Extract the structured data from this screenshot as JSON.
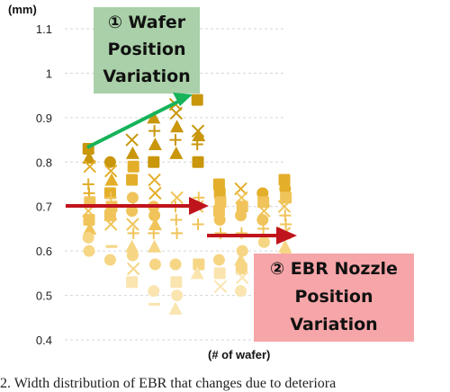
{
  "chart_data": {
    "type": "scatter",
    "ylabel": "(mm)",
    "xlabel": "(# of wafer)",
    "ylim": [
      0.4,
      1.1
    ],
    "yticks": [
      "1.1",
      "1",
      "0.9",
      "0.8",
      "0.7",
      "0.6",
      "0.5",
      "0.4"
    ],
    "grid": "horizontal dashed",
    "columns": [
      {
        "x": 1,
        "points": [
          {
            "y": 0.83,
            "m": "sq"
          },
          {
            "y": 0.81,
            "m": "tri"
          },
          {
            "y": 0.79,
            "m": "x"
          },
          {
            "y": 0.75,
            "m": "plus"
          },
          {
            "y": 0.73,
            "m": "plus"
          },
          {
            "y": 0.71,
            "m": "sq"
          },
          {
            "y": 0.69,
            "m": "x"
          },
          {
            "y": 0.67,
            "m": "sq"
          },
          {
            "y": 0.65,
            "m": "tri"
          },
          {
            "y": 0.63,
            "m": "circ"
          },
          {
            "y": 0.6,
            "m": "circ"
          }
        ]
      },
      {
        "x": 2,
        "points": [
          {
            "y": 0.8,
            "m": "circ"
          },
          {
            "y": 0.78,
            "m": "x"
          },
          {
            "y": 0.76,
            "m": "tri"
          },
          {
            "y": 0.73,
            "m": "sq"
          },
          {
            "y": 0.72,
            "m": "plus"
          },
          {
            "y": 0.7,
            "m": "sq"
          },
          {
            "y": 0.68,
            "m": "sq"
          },
          {
            "y": 0.66,
            "m": "x"
          },
          {
            "y": 0.61,
            "m": "bar"
          },
          {
            "y": 0.58,
            "m": "circ"
          }
        ]
      },
      {
        "x": 3,
        "points": [
          {
            "y": 0.85,
            "m": "x"
          },
          {
            "y": 0.82,
            "m": "tri"
          },
          {
            "y": 0.79,
            "m": "sq"
          },
          {
            "y": 0.76,
            "m": "sq"
          },
          {
            "y": 0.72,
            "m": "circ"
          },
          {
            "y": 0.7,
            "m": "plus"
          },
          {
            "y": 0.69,
            "m": "circ"
          },
          {
            "y": 0.66,
            "m": "x"
          },
          {
            "y": 0.64,
            "m": "plus"
          },
          {
            "y": 0.61,
            "m": "tri"
          },
          {
            "y": 0.59,
            "m": "circ"
          },
          {
            "y": 0.56,
            "m": "x"
          },
          {
            "y": 0.53,
            "m": "sq"
          }
        ]
      },
      {
        "x": 4,
        "points": [
          {
            "y": 0.9,
            "m": "tri"
          },
          {
            "y": 0.87,
            "m": "plus"
          },
          {
            "y": 0.84,
            "m": "tri"
          },
          {
            "y": 0.8,
            "m": "sq"
          },
          {
            "y": 0.76,
            "m": "x"
          },
          {
            "y": 0.73,
            "m": "x"
          },
          {
            "y": 0.7,
            "m": "circ"
          },
          {
            "y": 0.68,
            "m": "circ"
          },
          {
            "y": 0.66,
            "m": "tri"
          },
          {
            "y": 0.64,
            "m": "plus"
          },
          {
            "y": 0.61,
            "m": "tri"
          },
          {
            "y": 0.57,
            "m": "circ"
          },
          {
            "y": 0.51,
            "m": "circ"
          },
          {
            "y": 0.48,
            "m": "bar"
          }
        ]
      },
      {
        "x": 5,
        "points": [
          {
            "y": 0.93,
            "m": "x"
          },
          {
            "y": 0.91,
            "m": "x"
          },
          {
            "y": 0.88,
            "m": "tri"
          },
          {
            "y": 0.85,
            "m": "plus"
          },
          {
            "y": 0.82,
            "m": "tri"
          },
          {
            "y": 0.72,
            "m": "x"
          },
          {
            "y": 0.7,
            "m": "plus"
          },
          {
            "y": 0.67,
            "m": "plus"
          },
          {
            "y": 0.64,
            "m": "plus"
          },
          {
            "y": 0.57,
            "m": "circ"
          },
          {
            "y": 0.53,
            "m": "sq"
          },
          {
            "y": 0.5,
            "m": "circ"
          },
          {
            "y": 0.47,
            "m": "tri"
          }
        ]
      },
      {
        "x": 6,
        "points": [
          {
            "y": 0.94,
            "m": "sq"
          },
          {
            "y": 0.87,
            "m": "x"
          },
          {
            "y": 0.86,
            "m": "tri"
          },
          {
            "y": 0.84,
            "m": "plus"
          },
          {
            "y": 0.8,
            "m": "sq"
          },
          {
            "y": 0.72,
            "m": "plus"
          },
          {
            "y": 0.7,
            "m": "x"
          },
          {
            "y": 0.66,
            "m": "plus"
          },
          {
            "y": 0.57,
            "m": "sq"
          },
          {
            "y": 0.55,
            "m": "tri"
          }
        ]
      },
      {
        "x": 7,
        "points": [
          {
            "y": 0.75,
            "m": "sq"
          },
          {
            "y": 0.73,
            "m": "sq"
          },
          {
            "y": 0.71,
            "m": "sq"
          },
          {
            "y": 0.69,
            "m": "sq"
          },
          {
            "y": 0.67,
            "m": "circ"
          },
          {
            "y": 0.64,
            "m": "plus"
          },
          {
            "y": 0.58,
            "m": "circ"
          },
          {
            "y": 0.55,
            "m": "sq"
          },
          {
            "y": 0.52,
            "m": "x"
          }
        ]
      },
      {
        "x": 8,
        "points": [
          {
            "y": 0.74,
            "m": "x"
          },
          {
            "y": 0.72,
            "m": "x"
          },
          {
            "y": 0.7,
            "m": "sq"
          },
          {
            "y": 0.68,
            "m": "circ"
          },
          {
            "y": 0.64,
            "m": "plus"
          },
          {
            "y": 0.6,
            "m": "circ"
          },
          {
            "y": 0.58,
            "m": "tri"
          },
          {
            "y": 0.56,
            "m": "sq"
          },
          {
            "y": 0.54,
            "m": "x"
          },
          {
            "y": 0.51,
            "m": "circ"
          }
        ]
      },
      {
        "x": 9,
        "points": [
          {
            "y": 0.73,
            "m": "circ"
          },
          {
            "y": 0.71,
            "m": "sq"
          },
          {
            "y": 0.69,
            "m": "x"
          },
          {
            "y": 0.67,
            "m": "circ"
          },
          {
            "y": 0.65,
            "m": "plus"
          },
          {
            "y": 0.62,
            "m": "circ"
          },
          {
            "y": 0.58,
            "m": "sq"
          },
          {
            "y": 0.55,
            "m": "sq"
          },
          {
            "y": 0.53,
            "m": "tri"
          }
        ]
      },
      {
        "x": 10,
        "points": [
          {
            "y": 0.76,
            "m": "sq"
          },
          {
            "y": 0.74,
            "m": "circ"
          },
          {
            "y": 0.72,
            "m": "sq"
          },
          {
            "y": 0.7,
            "m": "x"
          },
          {
            "y": 0.68,
            "m": "plus"
          },
          {
            "y": 0.66,
            "m": "plus"
          },
          {
            "y": 0.64,
            "m": "x"
          },
          {
            "y": 0.61,
            "m": "tri"
          },
          {
            "y": 0.59,
            "m": "circ"
          }
        ]
      }
    ],
    "annotations": [
      {
        "label_lines": [
          "① Wafer",
          "Position",
          "Variation"
        ],
        "box_color": "#a9d0a8",
        "arrow_color": "#16b35a"
      },
      {
        "label_lines": [
          "② EBR Nozzle",
          "Position",
          "Variation"
        ],
        "box_color": "#f6a5a8",
        "arrow_color": "#c0141c"
      }
    ]
  },
  "caption": "2. Width distribution of  EBR that changes due to deteriora"
}
